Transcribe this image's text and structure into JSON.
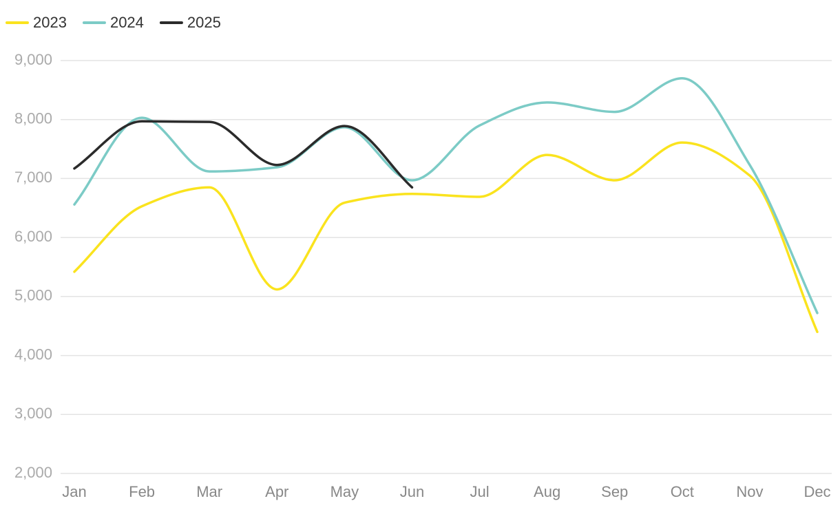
{
  "chart_data": {
    "type": "line",
    "categories": [
      "Jan",
      "Feb",
      "Mar",
      "Apr",
      "May",
      "Jun",
      "Jul",
      "Aug",
      "Sep",
      "Oct",
      "Nov",
      "Dec"
    ],
    "series": [
      {
        "name": "2023",
        "color": "#fae31e",
        "values": [
          5420,
          6530,
          6850,
          5120,
          6590,
          6740,
          6690,
          7400,
          6970,
          7610,
          7050,
          4400
        ]
      },
      {
        "name": "2024",
        "color": "#7ccbc6",
        "values": [
          6560,
          8030,
          7120,
          7190,
          7870,
          6970,
          7900,
          8290,
          8130,
          8700,
          7230,
          4720
        ]
      },
      {
        "name": "2025",
        "color": "#2b2b2b",
        "values": [
          7170,
          7970,
          7960,
          7230,
          7890,
          6850,
          null,
          null,
          null,
          null,
          null,
          null
        ]
      }
    ],
    "ylim": [
      2000,
      9000
    ],
    "yticks": [
      {
        "value": 2000,
        "label": "2,000"
      },
      {
        "value": 3000,
        "label": "3,000"
      },
      {
        "value": 4000,
        "label": "4,000"
      },
      {
        "value": 5000,
        "label": "5,000"
      },
      {
        "value": 6000,
        "label": "6,000"
      },
      {
        "value": 7000,
        "label": "7,000"
      },
      {
        "value": 8000,
        "label": "8,000"
      },
      {
        "value": 9000,
        "label": "9,000"
      }
    ],
    "grid": true,
    "legend": "top-left"
  }
}
